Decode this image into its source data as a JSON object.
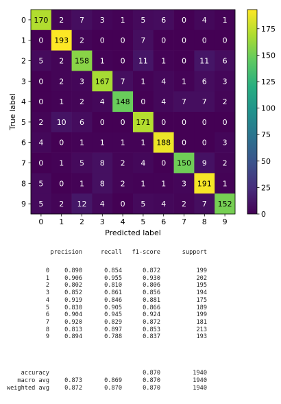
{
  "chart_data": {
    "type": "heatmap",
    "title": "",
    "xlabel": "Predicted label",
    "ylabel": "True label",
    "x_categories": [
      "0",
      "1",
      "2",
      "3",
      "4",
      "5",
      "6",
      "7",
      "8",
      "9"
    ],
    "y_categories": [
      "0",
      "1",
      "2",
      "3",
      "4",
      "5",
      "6",
      "7",
      "8",
      "9"
    ],
    "matrix": [
      [
        170,
        2,
        7,
        3,
        1,
        5,
        6,
        0,
        4,
        1
      ],
      [
        0,
        193,
        2,
        0,
        0,
        7,
        0,
        0,
        0,
        0
      ],
      [
        5,
        2,
        158,
        1,
        0,
        11,
        1,
        0,
        11,
        6
      ],
      [
        0,
        2,
        3,
        167,
        7,
        1,
        4,
        1,
        6,
        3
      ],
      [
        0,
        1,
        2,
        4,
        148,
        0,
        4,
        7,
        7,
        2
      ],
      [
        2,
        10,
        6,
        0,
        0,
        171,
        0,
        0,
        0,
        0
      ],
      [
        4,
        0,
        1,
        1,
        1,
        1,
        188,
        0,
        0,
        3
      ],
      [
        0,
        1,
        5,
        8,
        2,
        4,
        0,
        150,
        9,
        2
      ],
      [
        5,
        0,
        1,
        8,
        2,
        1,
        1,
        3,
        191,
        1
      ],
      [
        5,
        2,
        12,
        4,
        0,
        5,
        4,
        2,
        7,
        152
      ]
    ],
    "colormap": "viridis",
    "color_range": [
      0,
      193
    ],
    "colorbar_ticks": [
      0,
      25,
      50,
      75,
      100,
      125,
      150,
      175
    ]
  },
  "report": {
    "headers": [
      "precision",
      "recall",
      "f1-score",
      "support"
    ],
    "rows": [
      {
        "label": "0",
        "precision": "0.890",
        "recall": "0.854",
        "f1": "0.872",
        "support": "199"
      },
      {
        "label": "1",
        "precision": "0.906",
        "recall": "0.955",
        "f1": "0.930",
        "support": "202"
      },
      {
        "label": "2",
        "precision": "0.802",
        "recall": "0.810",
        "f1": "0.806",
        "support": "195"
      },
      {
        "label": "3",
        "precision": "0.852",
        "recall": "0.861",
        "f1": "0.856",
        "support": "194"
      },
      {
        "label": "4",
        "precision": "0.919",
        "recall": "0.846",
        "f1": "0.881",
        "support": "175"
      },
      {
        "label": "5",
        "precision": "0.830",
        "recall": "0.905",
        "f1": "0.866",
        "support": "189"
      },
      {
        "label": "6",
        "precision": "0.904",
        "recall": "0.945",
        "f1": "0.924",
        "support": "199"
      },
      {
        "label": "7",
        "precision": "0.920",
        "recall": "0.829",
        "f1": "0.872",
        "support": "181"
      },
      {
        "label": "8",
        "precision": "0.813",
        "recall": "0.897",
        "f1": "0.853",
        "support": "213"
      },
      {
        "label": "9",
        "precision": "0.894",
        "recall": "0.788",
        "f1": "0.837",
        "support": "193"
      }
    ],
    "summary": [
      {
        "label": "accuracy",
        "precision": "",
        "recall": "",
        "f1": "0.870",
        "support": "1940"
      },
      {
        "label": "macro avg",
        "precision": "0.873",
        "recall": "0.869",
        "f1": "0.870",
        "support": "1940"
      },
      {
        "label": "weighted avg",
        "precision": "0.872",
        "recall": "0.870",
        "f1": "0.870",
        "support": "1940"
      }
    ]
  }
}
